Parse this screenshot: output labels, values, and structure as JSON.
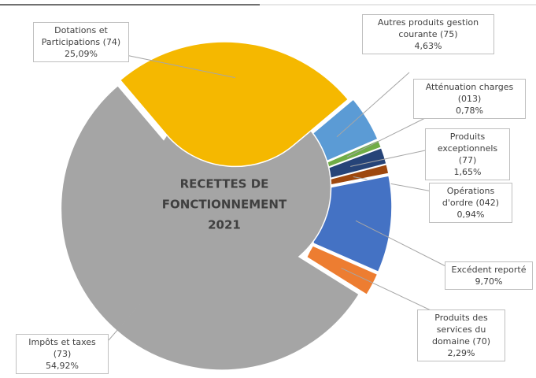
{
  "chart_data": {
    "type": "donut",
    "title": [
      "RECETTES DE",
      "FONCTIONNEMENT",
      "2021"
    ],
    "categories": [
      "Autres produits gestion courante (75)",
      "Atténuation charges (013)",
      "Produits exceptionnels (77)",
      "Opérations d'ordre (042)",
      "Excédent reporté",
      "Produits des services du domaine (70)",
      "Impôts et taxes (73)",
      "Dotations et Participations (74)"
    ],
    "values": [
      4.63,
      0.78,
      1.65,
      0.94,
      9.7,
      2.29,
      54.92,
      25.09
    ],
    "value_labels": [
      "4,63%",
      "0,78%",
      "1,65%",
      "0,94%",
      "9,70%",
      "2,29%",
      "54,92%",
      "25,09%"
    ],
    "colors": [
      "#5b9bd5",
      "#70ad47",
      "#264478",
      "#9e480e",
      "#4472c4",
      "#ed7d31",
      "#a5a5a5",
      "#f5b800"
    ]
  }
}
